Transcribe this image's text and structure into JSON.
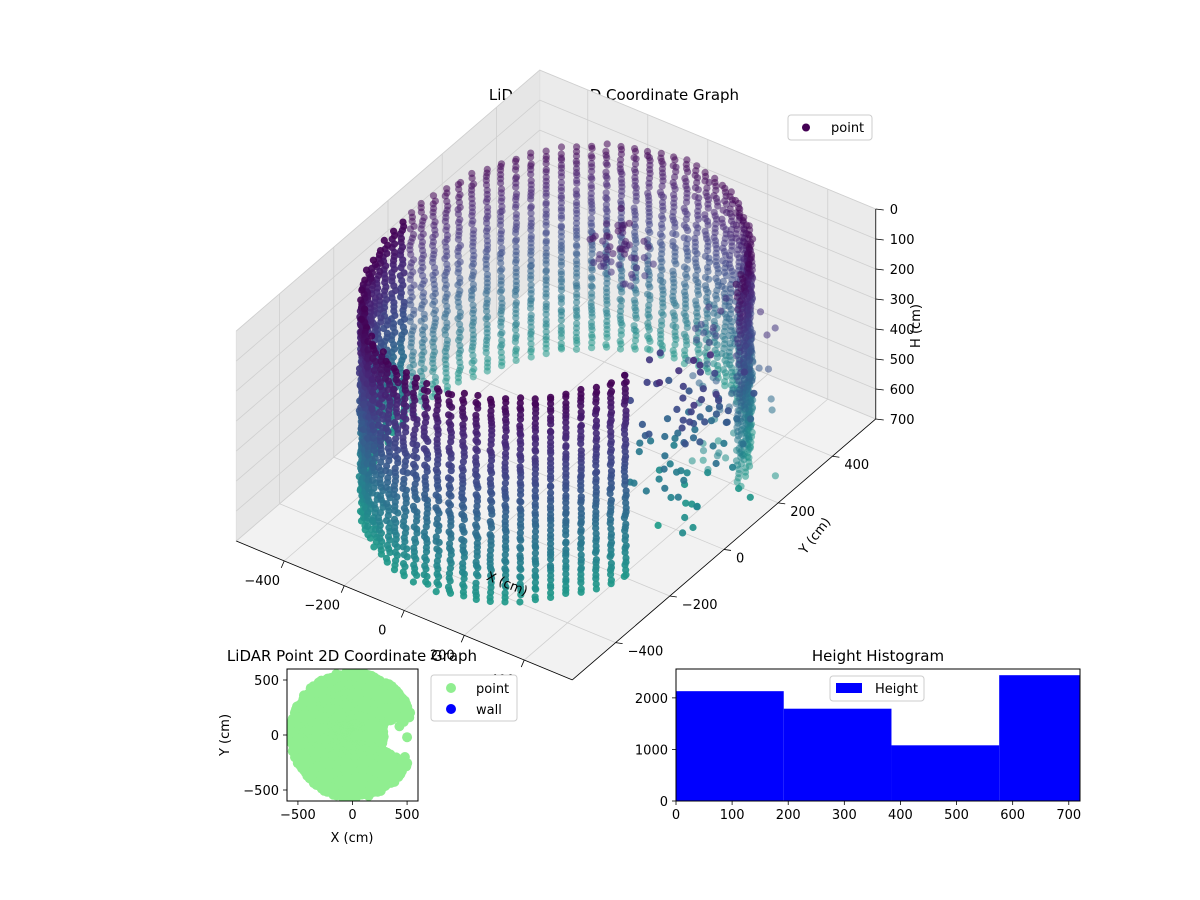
{
  "chart_data": [
    {
      "type": "scatter",
      "title": "LiDAR Point 3D Coordinate Graph",
      "xlabel": "X (cm)",
      "ylabel": "Y (cm)",
      "zlabel": "H (cm)",
      "xlim": [
        -560,
        560
      ],
      "ylim": [
        -560,
        560
      ],
      "zlim": [
        0,
        700
      ],
      "z_inverted": true,
      "x_ticks": [
        -400,
        -200,
        0,
        200,
        400
      ],
      "y_ticks": [
        -400,
        -200,
        0,
        200,
        400
      ],
      "z_ticks": [
        0,
        100,
        200,
        300,
        400,
        500,
        600,
        700
      ],
      "x_tick_labels": [
        "−400",
        "−200",
        "0",
        "200",
        "400"
      ],
      "y_tick_labels": [
        "−400",
        "−200",
        "0",
        "200",
        "400"
      ],
      "z_tick_labels": [
        "0",
        "100",
        "200",
        "300",
        "400",
        "500",
        "600",
        "700"
      ],
      "colormap": "viridis",
      "color_by": "height",
      "series": [
        {
          "name": "point",
          "color": "#440154"
        }
      ],
      "wall": {
        "radius": 480,
        "height_top": 0,
        "height_bottom": 700,
        "gap_angle_deg": [
          -25,
          20
        ]
      },
      "legend": "top-right"
    },
    {
      "type": "scatter",
      "title": "LiDAR Point 2D Coordinate Graph",
      "xlabel": "X (cm)",
      "ylabel": "Y (cm)",
      "xlim": [
        -600,
        600
      ],
      "ylim": [
        -600,
        600
      ],
      "x_ticks": [
        -500,
        0,
        500
      ],
      "y_ticks": [
        -500,
        0,
        500
      ],
      "x_tick_labels": [
        "−500",
        "0",
        "500"
      ],
      "y_tick_labels": [
        "−500",
        "0",
        "500"
      ],
      "series": [
        {
          "name": "point",
          "color": "#90ee90"
        },
        {
          "name": "wall",
          "color": "#0000ff"
        }
      ],
      "legend": "outside-right"
    },
    {
      "type": "bar",
      "title": "Height Histogram",
      "bin_edges": [
        0,
        192,
        384,
        576,
        720
      ],
      "values": [
        2130,
        1790,
        1080,
        2440
      ],
      "xlim": [
        0,
        720
      ],
      "ylim": [
        0,
        2560
      ],
      "x_ticks": [
        0,
        100,
        200,
        300,
        400,
        500,
        600,
        700
      ],
      "y_ticks": [
        0,
        1000,
        2000
      ],
      "x_tick_labels": [
        "0",
        "100",
        "200",
        "300",
        "400",
        "500",
        "600",
        "700"
      ],
      "y_tick_labels": [
        "0",
        "1000",
        "2000"
      ],
      "series": [
        {
          "name": "Height",
          "color": "#0000ff"
        }
      ],
      "legend": "top-center"
    }
  ]
}
